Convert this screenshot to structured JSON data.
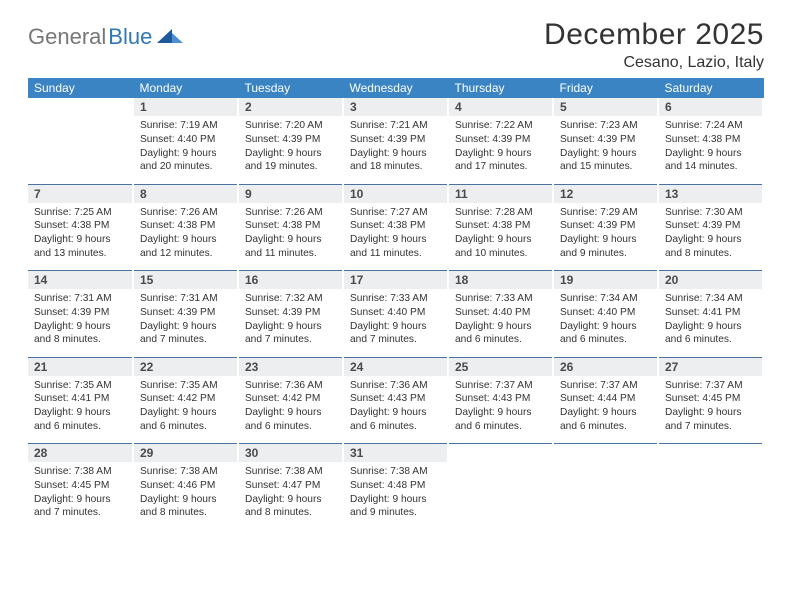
{
  "logo": {
    "gray": "General",
    "blue": "Blue"
  },
  "title": "December 2025",
  "location": "Cesano, Lazio, Italy",
  "colors": {
    "header_bg": "#3b84c4",
    "header_text": "#ffffff",
    "daynum_bg": "#eceef0",
    "daynum_text": "#4a4a4a",
    "body_text": "#333333",
    "rule": "#4a72a0",
    "logo_gray": "#777777",
    "logo_blue": "#3277b3"
  },
  "day_headers": [
    "Sunday",
    "Monday",
    "Tuesday",
    "Wednesday",
    "Thursday",
    "Friday",
    "Saturday"
  ],
  "weeks": [
    {
      "nums": [
        "",
        "1",
        "2",
        "3",
        "4",
        "5",
        "6"
      ],
      "cells": [
        {
          "sr": "",
          "ss": "",
          "dl": ""
        },
        {
          "sr": "Sunrise: 7:19 AM",
          "ss": "Sunset: 4:40 PM",
          "dl": "Daylight: 9 hours and 20 minutes."
        },
        {
          "sr": "Sunrise: 7:20 AM",
          "ss": "Sunset: 4:39 PM",
          "dl": "Daylight: 9 hours and 19 minutes."
        },
        {
          "sr": "Sunrise: 7:21 AM",
          "ss": "Sunset: 4:39 PM",
          "dl": "Daylight: 9 hours and 18 minutes."
        },
        {
          "sr": "Sunrise: 7:22 AM",
          "ss": "Sunset: 4:39 PM",
          "dl": "Daylight: 9 hours and 17 minutes."
        },
        {
          "sr": "Sunrise: 7:23 AM",
          "ss": "Sunset: 4:39 PM",
          "dl": "Daylight: 9 hours and 15 minutes."
        },
        {
          "sr": "Sunrise: 7:24 AM",
          "ss": "Sunset: 4:38 PM",
          "dl": "Daylight: 9 hours and 14 minutes."
        }
      ]
    },
    {
      "nums": [
        "7",
        "8",
        "9",
        "10",
        "11",
        "12",
        "13"
      ],
      "cells": [
        {
          "sr": "Sunrise: 7:25 AM",
          "ss": "Sunset: 4:38 PM",
          "dl": "Daylight: 9 hours and 13 minutes."
        },
        {
          "sr": "Sunrise: 7:26 AM",
          "ss": "Sunset: 4:38 PM",
          "dl": "Daylight: 9 hours and 12 minutes."
        },
        {
          "sr": "Sunrise: 7:26 AM",
          "ss": "Sunset: 4:38 PM",
          "dl": "Daylight: 9 hours and 11 minutes."
        },
        {
          "sr": "Sunrise: 7:27 AM",
          "ss": "Sunset: 4:38 PM",
          "dl": "Daylight: 9 hours and 11 minutes."
        },
        {
          "sr": "Sunrise: 7:28 AM",
          "ss": "Sunset: 4:38 PM",
          "dl": "Daylight: 9 hours and 10 minutes."
        },
        {
          "sr": "Sunrise: 7:29 AM",
          "ss": "Sunset: 4:39 PM",
          "dl": "Daylight: 9 hours and 9 minutes."
        },
        {
          "sr": "Sunrise: 7:30 AM",
          "ss": "Sunset: 4:39 PM",
          "dl": "Daylight: 9 hours and 8 minutes."
        }
      ]
    },
    {
      "nums": [
        "14",
        "15",
        "16",
        "17",
        "18",
        "19",
        "20"
      ],
      "cells": [
        {
          "sr": "Sunrise: 7:31 AM",
          "ss": "Sunset: 4:39 PM",
          "dl": "Daylight: 9 hours and 8 minutes."
        },
        {
          "sr": "Sunrise: 7:31 AM",
          "ss": "Sunset: 4:39 PM",
          "dl": "Daylight: 9 hours and 7 minutes."
        },
        {
          "sr": "Sunrise: 7:32 AM",
          "ss": "Sunset: 4:39 PM",
          "dl": "Daylight: 9 hours and 7 minutes."
        },
        {
          "sr": "Sunrise: 7:33 AM",
          "ss": "Sunset: 4:40 PM",
          "dl": "Daylight: 9 hours and 7 minutes."
        },
        {
          "sr": "Sunrise: 7:33 AM",
          "ss": "Sunset: 4:40 PM",
          "dl": "Daylight: 9 hours and 6 minutes."
        },
        {
          "sr": "Sunrise: 7:34 AM",
          "ss": "Sunset: 4:40 PM",
          "dl": "Daylight: 9 hours and 6 minutes."
        },
        {
          "sr": "Sunrise: 7:34 AM",
          "ss": "Sunset: 4:41 PM",
          "dl": "Daylight: 9 hours and 6 minutes."
        }
      ]
    },
    {
      "nums": [
        "21",
        "22",
        "23",
        "24",
        "25",
        "26",
        "27"
      ],
      "cells": [
        {
          "sr": "Sunrise: 7:35 AM",
          "ss": "Sunset: 4:41 PM",
          "dl": "Daylight: 9 hours and 6 minutes."
        },
        {
          "sr": "Sunrise: 7:35 AM",
          "ss": "Sunset: 4:42 PM",
          "dl": "Daylight: 9 hours and 6 minutes."
        },
        {
          "sr": "Sunrise: 7:36 AM",
          "ss": "Sunset: 4:42 PM",
          "dl": "Daylight: 9 hours and 6 minutes."
        },
        {
          "sr": "Sunrise: 7:36 AM",
          "ss": "Sunset: 4:43 PM",
          "dl": "Daylight: 9 hours and 6 minutes."
        },
        {
          "sr": "Sunrise: 7:37 AM",
          "ss": "Sunset: 4:43 PM",
          "dl": "Daylight: 9 hours and 6 minutes."
        },
        {
          "sr": "Sunrise: 7:37 AM",
          "ss": "Sunset: 4:44 PM",
          "dl": "Daylight: 9 hours and 6 minutes."
        },
        {
          "sr": "Sunrise: 7:37 AM",
          "ss": "Sunset: 4:45 PM",
          "dl": "Daylight: 9 hours and 7 minutes."
        }
      ]
    },
    {
      "nums": [
        "28",
        "29",
        "30",
        "31",
        "",
        "",
        ""
      ],
      "cells": [
        {
          "sr": "Sunrise: 7:38 AM",
          "ss": "Sunset: 4:45 PM",
          "dl": "Daylight: 9 hours and 7 minutes."
        },
        {
          "sr": "Sunrise: 7:38 AM",
          "ss": "Sunset: 4:46 PM",
          "dl": "Daylight: 9 hours and 8 minutes."
        },
        {
          "sr": "Sunrise: 7:38 AM",
          "ss": "Sunset: 4:47 PM",
          "dl": "Daylight: 9 hours and 8 minutes."
        },
        {
          "sr": "Sunrise: 7:38 AM",
          "ss": "Sunset: 4:48 PM",
          "dl": "Daylight: 9 hours and 9 minutes."
        },
        {
          "sr": "",
          "ss": "",
          "dl": ""
        },
        {
          "sr": "",
          "ss": "",
          "dl": ""
        },
        {
          "sr": "",
          "ss": "",
          "dl": ""
        }
      ]
    }
  ]
}
